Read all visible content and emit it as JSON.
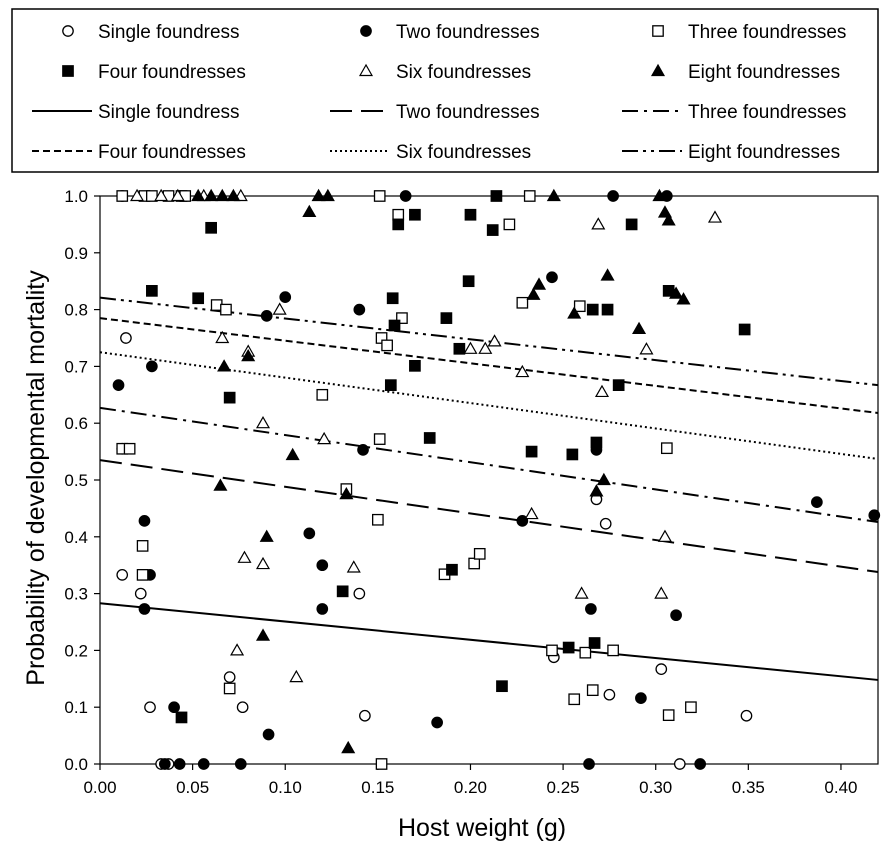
{
  "chart_data": {
    "type": "scatter",
    "xlabel": "Host weight (g)",
    "ylabel": "Probability of developmental mortality",
    "xlim": [
      0.0,
      0.42
    ],
    "ylim": [
      0.0,
      1.0
    ],
    "xticks": [
      "0.00",
      "0.05",
      "0.10",
      "0.15",
      "0.20",
      "0.25",
      "0.30",
      "0.35",
      "0.40"
    ],
    "yticks": [
      "0.0",
      "0.1",
      "0.2",
      "0.3",
      "0.4",
      "0.5",
      "0.6",
      "0.7",
      "0.8",
      "0.9",
      "1.0"
    ],
    "grid": false,
    "legend_position": "top",
    "legend": [
      {
        "label": "Single foundress",
        "marker": "circle-open"
      },
      {
        "label": "Two foundresses",
        "marker": "circle-filled"
      },
      {
        "label": "Three foundresses",
        "marker": "square-open"
      },
      {
        "label": "Four foundresses",
        "marker": "square-filled"
      },
      {
        "label": "Six foundresses",
        "marker": "triangle-open"
      },
      {
        "label": "Eight foundresses",
        "marker": "triangle-filled"
      },
      {
        "label": "Single foundress",
        "line": "solid"
      },
      {
        "label": "Two foundresses",
        "line": "longdash"
      },
      {
        "label": "Three foundresses",
        "line": "dashdot"
      },
      {
        "label": "Four foundresses",
        "line": "shortdash"
      },
      {
        "label": "Six foundresses",
        "line": "dotted"
      },
      {
        "label": "Eight foundresses",
        "line": "dashdotdot"
      }
    ],
    "series": [
      {
        "name": "Single foundress",
        "marker": "circle-open",
        "points": [
          [
            0.012,
            1.0
          ],
          [
            0.014,
            0.75
          ],
          [
            0.012,
            0.555
          ],
          [
            0.012,
            0.333
          ],
          [
            0.022,
            0.3
          ],
          [
            0.027,
            0.1
          ],
          [
            0.033,
            0.0
          ],
          [
            0.037,
            0.0
          ],
          [
            0.07,
            0.153
          ],
          [
            0.077,
            0.1
          ],
          [
            0.14,
            0.3
          ],
          [
            0.143,
            0.085
          ],
          [
            0.245,
            0.188
          ],
          [
            0.268,
            0.466
          ],
          [
            0.273,
            0.423
          ],
          [
            0.275,
            0.122
          ],
          [
            0.303,
            0.167
          ],
          [
            0.313,
            0.0
          ],
          [
            0.349,
            0.085
          ]
        ]
      },
      {
        "name": "Two foundresses",
        "marker": "circle-filled",
        "points": [
          [
            0.01,
            0.667
          ],
          [
            0.028,
            0.7
          ],
          [
            0.024,
            0.428
          ],
          [
            0.027,
            0.333
          ],
          [
            0.024,
            0.273
          ],
          [
            0.04,
            0.1
          ],
          [
            0.035,
            0.0
          ],
          [
            0.043,
            0.0
          ],
          [
            0.056,
            0.0
          ],
          [
            0.09,
            0.789
          ],
          [
            0.1,
            0.822
          ],
          [
            0.091,
            0.052
          ],
          [
            0.076,
            0.0
          ],
          [
            0.14,
            0.8
          ],
          [
            0.142,
            0.553
          ],
          [
            0.113,
            0.406
          ],
          [
            0.12,
            0.35
          ],
          [
            0.12,
            0.273
          ],
          [
            0.165,
            1.0
          ],
          [
            0.182,
            0.073
          ],
          [
            0.244,
            0.857
          ],
          [
            0.228,
            0.428
          ],
          [
            0.277,
            1.0
          ],
          [
            0.265,
            0.273
          ],
          [
            0.268,
            0.553
          ],
          [
            0.264,
            0.0
          ],
          [
            0.292,
            0.116
          ],
          [
            0.306,
            1.0
          ],
          [
            0.311,
            0.262
          ],
          [
            0.324,
            0.0
          ],
          [
            0.387,
            0.461
          ],
          [
            0.418,
            0.438
          ]
        ]
      },
      {
        "name": "Three foundresses",
        "marker": "square-open",
        "points": [
          [
            0.012,
            1.0
          ],
          [
            0.024,
            1.0
          ],
          [
            0.028,
            1.0
          ],
          [
            0.037,
            1.0
          ],
          [
            0.044,
            1.0
          ],
          [
            0.046,
            1.0
          ],
          [
            0.012,
            0.555
          ],
          [
            0.016,
            0.555
          ],
          [
            0.023,
            0.384
          ],
          [
            0.023,
            0.333
          ],
          [
            0.063,
            0.808
          ],
          [
            0.068,
            0.8
          ],
          [
            0.07,
            0.133
          ],
          [
            0.12,
            0.65
          ],
          [
            0.133,
            0.484
          ],
          [
            0.151,
            1.0
          ],
          [
            0.161,
            0.967
          ],
          [
            0.163,
            0.785
          ],
          [
            0.152,
            0.75
          ],
          [
            0.155,
            0.737
          ],
          [
            0.151,
            0.572
          ],
          [
            0.15,
            0.43
          ],
          [
            0.152,
            0.0
          ],
          [
            0.186,
            0.334
          ],
          [
            0.202,
            0.353
          ],
          [
            0.205,
            0.37
          ],
          [
            0.221,
            0.95
          ],
          [
            0.228,
            0.812
          ],
          [
            0.232,
            1.0
          ],
          [
            0.244,
            0.2
          ],
          [
            0.256,
            0.114
          ],
          [
            0.259,
            0.806
          ],
          [
            0.262,
            0.196
          ],
          [
            0.266,
            0.13
          ],
          [
            0.277,
            0.2
          ],
          [
            0.306,
            0.556
          ],
          [
            0.307,
            0.086
          ],
          [
            0.319,
            0.1
          ]
        ]
      },
      {
        "name": "Four foundresses",
        "marker": "square-filled",
        "points": [
          [
            0.028,
            0.833
          ],
          [
            0.044,
            0.082
          ],
          [
            0.053,
            0.82
          ],
          [
            0.06,
            0.944
          ],
          [
            0.07,
            0.645
          ],
          [
            0.131,
            0.304
          ],
          [
            0.157,
            0.667
          ],
          [
            0.158,
            0.82
          ],
          [
            0.159,
            0.772
          ],
          [
            0.161,
            0.95
          ],
          [
            0.17,
            0.967
          ],
          [
            0.17,
            0.701
          ],
          [
            0.178,
            0.574
          ],
          [
            0.187,
            0.785
          ],
          [
            0.19,
            0.342
          ],
          [
            0.194,
            0.731
          ],
          [
            0.199,
            0.85
          ],
          [
            0.2,
            0.967
          ],
          [
            0.212,
            0.94
          ],
          [
            0.214,
            1.0
          ],
          [
            0.217,
            0.137
          ],
          [
            0.233,
            0.55
          ],
          [
            0.253,
            0.205
          ],
          [
            0.255,
            0.545
          ],
          [
            0.266,
            0.8
          ],
          [
            0.267,
            0.213
          ],
          [
            0.268,
            0.566
          ],
          [
            0.274,
            0.8
          ],
          [
            0.28,
            0.667
          ],
          [
            0.287,
            0.95
          ],
          [
            0.307,
            0.833
          ],
          [
            0.348,
            0.765
          ]
        ]
      },
      {
        "name": "Six foundresses",
        "marker": "triangle-open",
        "points": [
          [
            0.02,
            1.0
          ],
          [
            0.033,
            1.0
          ],
          [
            0.042,
            1.0
          ],
          [
            0.056,
            1.0
          ],
          [
            0.066,
            0.75
          ],
          [
            0.076,
            1.0
          ],
          [
            0.08,
            0.726
          ],
          [
            0.088,
            0.6
          ],
          [
            0.088,
            0.352
          ],
          [
            0.074,
            0.2
          ],
          [
            0.078,
            0.363
          ],
          [
            0.097,
            0.8
          ],
          [
            0.106,
            0.153
          ],
          [
            0.121,
            0.572
          ],
          [
            0.137,
            0.346
          ],
          [
            0.2,
            0.731
          ],
          [
            0.208,
            0.731
          ],
          [
            0.213,
            0.744
          ],
          [
            0.228,
            0.69
          ],
          [
            0.233,
            0.44
          ],
          [
            0.26,
            0.3
          ],
          [
            0.269,
            0.95
          ],
          [
            0.271,
            0.655
          ],
          [
            0.295,
            0.73
          ],
          [
            0.303,
            0.3
          ],
          [
            0.305,
            0.4
          ],
          [
            0.332,
            0.962
          ]
        ]
      },
      {
        "name": "Eight foundresses",
        "marker": "triangle-filled",
        "points": [
          [
            0.053,
            1.0
          ],
          [
            0.06,
            1.0
          ],
          [
            0.066,
            1.0
          ],
          [
            0.072,
            1.0
          ],
          [
            0.065,
            0.49
          ],
          [
            0.067,
            0.7
          ],
          [
            0.08,
            0.718
          ],
          [
            0.088,
            0.226
          ],
          [
            0.09,
            0.4
          ],
          [
            0.104,
            0.544
          ],
          [
            0.113,
            0.972
          ],
          [
            0.118,
            1.0
          ],
          [
            0.123,
            1.0
          ],
          [
            0.133,
            0.475
          ],
          [
            0.134,
            0.028
          ],
          [
            0.234,
            0.826
          ],
          [
            0.237,
            0.844
          ],
          [
            0.245,
            1.0
          ],
          [
            0.256,
            0.793
          ],
          [
            0.268,
            0.48
          ],
          [
            0.272,
            0.5
          ],
          [
            0.274,
            0.86
          ],
          [
            0.291,
            0.766
          ],
          [
            0.302,
            1.0
          ],
          [
            0.305,
            0.971
          ],
          [
            0.307,
            0.957
          ],
          [
            0.311,
            0.828
          ],
          [
            0.315,
            0.818
          ]
        ]
      }
    ],
    "fitted_lines": [
      {
        "name": "Single foundress",
        "style": "solid",
        "x": [
          0.0,
          0.42
        ],
        "y": [
          0.283,
          0.148
        ]
      },
      {
        "name": "Two foundresses",
        "style": "longdash",
        "x": [
          0.0,
          0.42
        ],
        "y": [
          0.535,
          0.338
        ]
      },
      {
        "name": "Three foundresses",
        "style": "dashdot",
        "x": [
          0.0,
          0.42
        ],
        "y": [
          0.627,
          0.426
        ]
      },
      {
        "name": "Four foundresses",
        "style": "shortdash",
        "x": [
          0.0,
          0.42
        ],
        "y": [
          0.785,
          0.618
        ]
      },
      {
        "name": "Six foundresses",
        "style": "dotted",
        "x": [
          0.0,
          0.42
        ],
        "y": [
          0.725,
          0.537
        ]
      },
      {
        "name": "Eight foundresses",
        "style": "dashdotdot",
        "x": [
          0.0,
          0.42
        ],
        "y": [
          0.821,
          0.667
        ]
      }
    ]
  }
}
